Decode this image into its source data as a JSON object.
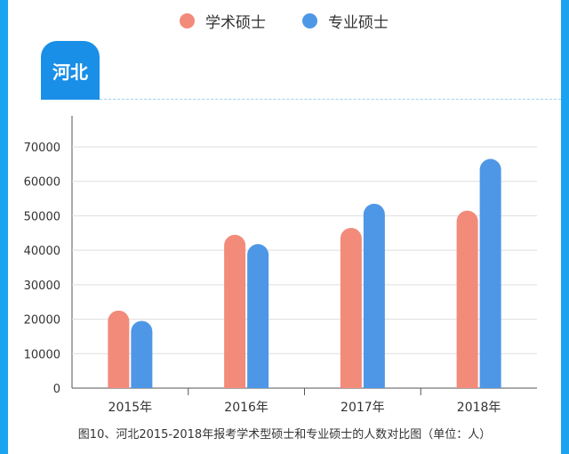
{
  "region": "河北",
  "caption": "图10、河北2015-2018年报考学术型硕士和专业硕士的人数对比图（单位：人）",
  "colors": {
    "frame": "#1aa3f0",
    "tab": "#1a8fe8",
    "academic": "#f28b7a",
    "professional": "#4e97e6",
    "axis": "#555555",
    "grid": "#dddddd"
  },
  "legend": [
    {
      "name": "学术硕士",
      "color": "#f28b7a"
    },
    {
      "name": "专业硕士",
      "color": "#4e97e6"
    }
  ],
  "chart_data": {
    "type": "bar",
    "categories": [
      "2015年",
      "2016年",
      "2017年",
      "2018年"
    ],
    "series": [
      {
        "name": "学术硕士",
        "values": [
          22500,
          44500,
          46500,
          51500
        ]
      },
      {
        "name": "专业硕士",
        "values": [
          19500,
          41800,
          53500,
          66500
        ]
      }
    ],
    "yticks": [
      "0",
      "10000",
      "20000",
      "30000",
      "40000",
      "50000",
      "60000",
      "70000"
    ],
    "ylim": [
      0,
      70000
    ],
    "grid": true,
    "legend_position": "top-center",
    "bar_ends": "rounded-top"
  }
}
